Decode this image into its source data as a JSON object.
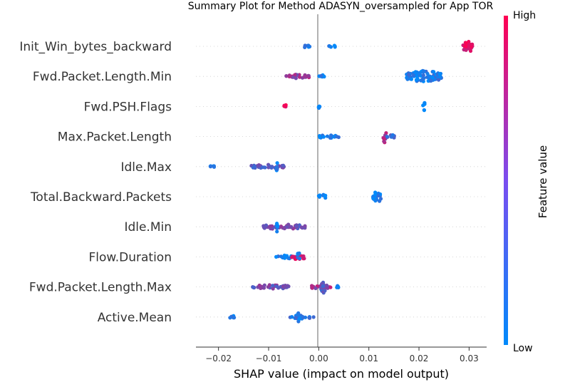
{
  "chart_data": {
    "type": "scatter",
    "title": "Summary Plot for Method ADASYN_oversampled for App TOR",
    "xlabel": "SHAP value (impact on model output)",
    "xlim": [
      -0.0245,
      0.0335
    ],
    "xticks": [
      -0.02,
      -0.01,
      0.0,
      0.01,
      0.02,
      0.03
    ],
    "xtick_labels": [
      "−0.02",
      "−0.01",
      "0.00",
      "0.01",
      "0.02",
      "0.03"
    ],
    "colorbar": {
      "label": "Feature value",
      "high_label": "High",
      "low_label": "Low",
      "low_color": "#008afb",
      "high_color": "#ff0052"
    },
    "features": [
      {
        "name": "Init_Win_bytes_backward",
        "clusters": [
          {
            "x": [
              -0.003,
              -0.0018
            ],
            "v": 0.1,
            "h": 5
          },
          {
            "x": [
              0.0015,
              0.0035
            ],
            "v": 0.1,
            "h": 4
          },
          {
            "x": [
              0.0288,
              0.0307
            ],
            "v": 0.88,
            "h": 17
          }
        ]
      },
      {
        "name": "Fwd.Packet.Length.Min",
        "clusters": [
          {
            "x": [
              -0.0065,
              -0.001
            ],
            "v": 0.55,
            "h": 6
          },
          {
            "x": [
              -0.0005,
              0.0012
            ],
            "v": 0.05,
            "h": 5
          },
          {
            "x": [
              0.0175,
              0.0245
            ],
            "v": 0.1,
            "h": 17
          }
        ]
      },
      {
        "name": "Fwd.PSH.Flags",
        "clusters": [
          {
            "x": [
              -0.0069,
              -0.0065
            ],
            "v": 1.0,
            "h": 6
          },
          {
            "x": [
              -0.0001,
              0.0002
            ],
            "v": 0.0,
            "h": 6
          },
          {
            "x": [
              0.0208,
              0.0212
            ],
            "v": 0.0,
            "h": 17
          }
        ]
      },
      {
        "name": "Max.Packet.Length",
        "clusters": [
          {
            "x": [
              0.0,
              0.001
            ],
            "v": 0.05,
            "h": 4
          },
          {
            "x": [
              0.0017,
              0.004
            ],
            "v": 0.1,
            "h": 5
          },
          {
            "x": [
              0.0128,
              0.0135
            ],
            "v": 0.6,
            "h": 17
          },
          {
            "x": [
              0.0135,
              0.0152
            ],
            "v": 0.2,
            "h": 6
          }
        ]
      },
      {
        "name": "Idle.Max",
        "clusters": [
          {
            "x": [
              -0.022,
              -0.0208
            ],
            "v": 0.05,
            "h": 3
          },
          {
            "x": [
              -0.0135,
              -0.0065
            ],
            "v": 0.4,
            "h": 6
          },
          {
            "x": [
              -0.0085,
              -0.0082
            ],
            "v": 0.05,
            "h": 17
          }
        ]
      },
      {
        "name": "Total.Backward.Packets",
        "clusters": [
          {
            "x": [
              0.0,
              0.0018
            ],
            "v": 0.05,
            "h": 6
          },
          {
            "x": [
              0.0108,
              0.0125
            ],
            "v": 0.05,
            "h": 17
          }
        ]
      },
      {
        "name": "Idle.Min",
        "clusters": [
          {
            "x": [
              -0.0115,
              -0.0025
            ],
            "v": 0.45,
            "h": 7
          },
          {
            "x": [
              -0.0085,
              -0.0082
            ],
            "v": 0.05,
            "h": 17
          }
        ]
      },
      {
        "name": "Flow.Duration",
        "clusters": [
          {
            "x": [
              -0.0085,
              -0.004
            ],
            "v": 0.1,
            "h": 5
          },
          {
            "x": [
              -0.0055,
              -0.0025
            ],
            "v": 0.95,
            "h": 8
          },
          {
            "x": [
              -0.0042,
              -0.0038
            ],
            "v": 0.05,
            "h": 17
          }
        ]
      },
      {
        "name": "Fwd.Packet.Length.Max",
        "clusters": [
          {
            "x": [
              -0.0132,
              -0.0058
            ],
            "v": 0.45,
            "h": 6
          },
          {
            "x": [
              -0.002,
              0.0025
            ],
            "v": 0.6,
            "h": 5
          },
          {
            "x": [
              0.0004,
              0.0016
            ],
            "v": 0.35,
            "h": 17
          },
          {
            "x": [
              0.0035,
              0.004
            ],
            "v": 0.05,
            "h": 3
          }
        ]
      },
      {
        "name": "Active.Mean",
        "clusters": [
          {
            "x": [
              -0.0182,
              -0.0165
            ],
            "v": 0.05,
            "h": 4
          },
          {
            "x": [
              -0.0058,
              -0.001
            ],
            "v": 0.15,
            "h": 5
          },
          {
            "x": [
              -0.0042,
              -0.0038
            ],
            "v": 0.05,
            "h": 17
          }
        ]
      }
    ]
  }
}
